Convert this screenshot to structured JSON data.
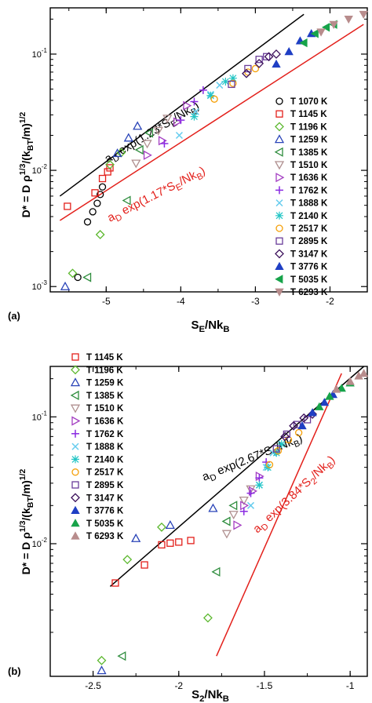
{
  "chart_data": [
    {
      "type": "scatter",
      "panel_label": "(a)",
      "xlabel": "S_E/Nk_B",
      "ylabel": "D* = D ρ^{1/3}/(k_BT/m)^{1/2}",
      "xlim": [
        -5.75,
        -1.5
      ],
      "ylim": [
        0.0009,
        0.25
      ],
      "yscale": "log",
      "xticks": [
        "-5",
        "-4",
        "-3",
        "-2"
      ],
      "yticks": [
        "10^-3",
        "10^-2",
        "10^-1"
      ],
      "legend_position": "right",
      "series": [
        {
          "name": "T 1070 K",
          "color": "#000000",
          "marker": "circle-open",
          "x": [
            -5.38,
            -5.25,
            -5.18,
            -5.12,
            -5.08,
            -5.05
          ],
          "y": [
            0.0012,
            0.0036,
            0.0044,
            0.0052,
            0.0062,
            0.0072
          ]
        },
        {
          "name": "T 1145 K",
          "color": "#e3201b",
          "marker": "square-open",
          "x": [
            -5.52,
            -5.15,
            -5.05,
            -4.98,
            -4.95
          ],
          "y": [
            0.0049,
            0.0064,
            0.0085,
            0.0097,
            0.0105
          ]
        },
        {
          "name": "T 1196 K",
          "color": "#5cb82e",
          "marker": "diamond-open",
          "x": [
            -5.45,
            -5.08,
            -4.95,
            -4.8
          ],
          "y": [
            0.0013,
            0.0028,
            0.0112,
            0.0142
          ]
        },
        {
          "name": "T 1259 K",
          "color": "#2a44b8",
          "marker": "triangle-up-open",
          "x": [
            -5.55,
            -4.85,
            -4.7,
            -4.58
          ],
          "y": [
            0.001,
            0.014,
            0.019,
            0.024
          ]
        },
        {
          "name": "T 1385 K",
          "color": "#2d8c3c",
          "marker": "triangle-left-open",
          "x": [
            -5.25,
            -4.72,
            -4.55,
            -4.42
          ],
          "y": [
            0.0012,
            0.0055,
            0.015,
            0.021
          ]
        },
        {
          "name": "T 1510 K",
          "color": "#b09090",
          "marker": "triangle-down-open",
          "x": [
            -4.6,
            -4.45,
            -4.3,
            -4.18
          ],
          "y": [
            0.0115,
            0.017,
            0.022,
            0.028
          ]
        },
        {
          "name": "T 1636 K",
          "color": "#a43ec2",
          "marker": "triangle-right-open",
          "x": [
            -4.45,
            -4.25,
            -4.05,
            -3.92
          ],
          "y": [
            0.0135,
            0.018,
            0.026,
            0.036
          ]
        },
        {
          "name": "T 1762 K",
          "color": "#8a2be2",
          "marker": "plus",
          "x": [
            -4.22,
            -4.0,
            -3.82,
            -3.7
          ],
          "y": [
            0.017,
            0.027,
            0.039,
            0.049
          ]
        },
        {
          "name": "T 1888 K",
          "color": "#66ccee",
          "marker": "x",
          "x": [
            -4.02,
            -3.8,
            -3.6,
            -3.48
          ],
          "y": [
            0.02,
            0.032,
            0.045,
            0.054
          ]
        },
        {
          "name": "T 2140 K",
          "color": "#22c5c5",
          "marker": "star",
          "x": [
            -3.82,
            -3.6,
            -3.4,
            -3.3
          ],
          "y": [
            0.029,
            0.044,
            0.058,
            0.062
          ]
        },
        {
          "name": "T 2517 K",
          "color": "#f5a00a",
          "marker": "circle-open",
          "x": [
            -3.55,
            -3.3,
            -3.1,
            -3.0
          ],
          "y": [
            0.041,
            0.056,
            0.07,
            0.075
          ]
        },
        {
          "name": "T 2895 K",
          "color": "#6a3d9a",
          "marker": "square-open",
          "x": [
            -3.32,
            -3.1,
            -2.95,
            -2.85
          ],
          "y": [
            0.055,
            0.075,
            0.09,
            0.095
          ]
        },
        {
          "name": "T 3147 K",
          "color": "#3b0f5a",
          "marker": "diamond-open",
          "x": [
            -3.12,
            -2.95,
            -2.82,
            -2.72
          ],
          "y": [
            0.068,
            0.083,
            0.095,
            0.1
          ]
        },
        {
          "name": "T 3776 K",
          "color": "#1f3fc4",
          "marker": "triangle-up-filled",
          "x": [
            -2.72,
            -2.55,
            -2.4,
            -2.25
          ],
          "y": [
            0.082,
            0.105,
            0.13,
            0.15
          ]
        },
        {
          "name": "T 5035 K",
          "color": "#17a34a",
          "marker": "triangle-left-filled",
          "x": [
            -2.35,
            -2.2,
            -2.05,
            -1.95
          ],
          "y": [
            0.125,
            0.15,
            0.17,
            0.18
          ]
        },
        {
          "name": "T 6293 K",
          "color": "#b88c8c",
          "marker": "triangle-down-filled",
          "x": [
            -2.12,
            -1.95,
            -1.75,
            -1.55
          ],
          "y": [
            0.155,
            0.18,
            0.2,
            0.22
          ]
        }
      ],
      "fits": [
        {
          "label": "a_D exp(1.23*S_E/Nk_B)",
          "color": "#000000",
          "x": [
            -5.62,
            -2.35
          ],
          "y": [
            0.006,
            0.22
          ]
        },
        {
          "label": "a_D exp(1.17*S_E/Nk_B)",
          "color": "#e3201b",
          "x": [
            -5.62,
            -1.55
          ],
          "y": [
            0.0037,
            0.18
          ]
        }
      ]
    },
    {
      "type": "scatter",
      "panel_label": "(b)",
      "xlabel": "S_2/Nk_B",
      "ylabel": "D* = D ρ^{1/3}/(k_BT/m)^{1/2}",
      "xlim": [
        -2.75,
        -0.9
      ],
      "ylim": [
        0.0009,
        0.25
      ],
      "yscale": "log",
      "xticks": [
        "-2.5",
        "-2",
        "-1.5",
        "-1"
      ],
      "yticks": [
        "10^-2",
        "10^-1"
      ],
      "legend_position": "top-left",
      "series": [
        {
          "name": "T 1145 K",
          "color": "#e3201b",
          "marker": "square-open",
          "x": [
            -2.37,
            -2.2,
            -2.1,
            -2.05,
            -2.0,
            -1.93
          ],
          "y": [
            0.0049,
            0.0068,
            0.0098,
            0.0101,
            0.0103,
            0.0106
          ]
        },
        {
          "name": "T 1196 K",
          "color": "#5cb82e",
          "marker": "diamond-open",
          "x": [
            -2.45,
            -2.3,
            -2.1,
            -1.83
          ],
          "y": [
            0.0012,
            0.0075,
            0.0135,
            0.0026
          ]
        },
        {
          "name": "T 1259 K",
          "color": "#2a44b8",
          "marker": "triangle-up-open",
          "x": [
            -2.45,
            -2.25,
            -2.05,
            -1.8
          ],
          "y": [
            0.001,
            0.011,
            0.014,
            0.019
          ]
        },
        {
          "name": "T 1385 K",
          "color": "#2d8c3c",
          "marker": "triangle-left-open",
          "x": [
            -2.33,
            -1.78,
            -1.72,
            -1.68
          ],
          "y": [
            0.0013,
            0.006,
            0.015,
            0.02
          ]
        },
        {
          "name": "T 1510 K",
          "color": "#b09090",
          "marker": "triangle-down-open",
          "x": [
            -1.72,
            -1.68,
            -1.62,
            -1.58
          ],
          "y": [
            0.012,
            0.017,
            0.022,
            0.027
          ]
        },
        {
          "name": "T 1636 K",
          "color": "#a43ec2",
          "marker": "triangle-right-open",
          "x": [
            -1.66,
            -1.62,
            -1.57,
            -1.53
          ],
          "y": [
            0.014,
            0.02,
            0.026,
            0.034
          ]
        },
        {
          "name": "T 1762 K",
          "color": "#8a2be2",
          "marker": "plus",
          "x": [
            -1.62,
            -1.58,
            -1.53,
            -1.49
          ],
          "y": [
            0.018,
            0.025,
            0.033,
            0.044
          ]
        },
        {
          "name": "T 1888 K",
          "color": "#66ccee",
          "marker": "x",
          "x": [
            -1.58,
            -1.53,
            -1.49,
            -1.45
          ],
          "y": [
            0.02,
            0.029,
            0.04,
            0.052
          ]
        },
        {
          "name": "T 2140 K",
          "color": "#22c5c5",
          "marker": "star",
          "x": [
            -1.53,
            -1.48,
            -1.43,
            -1.4
          ],
          "y": [
            0.029,
            0.04,
            0.052,
            0.061
          ]
        },
        {
          "name": "T 2517 K",
          "color": "#f5a00a",
          "marker": "circle-open",
          "x": [
            -1.47,
            -1.42,
            -1.36,
            -1.3
          ],
          "y": [
            0.042,
            0.054,
            0.066,
            0.075
          ]
        },
        {
          "name": "T 2895 K",
          "color": "#6a3d9a",
          "marker": "square-open",
          "x": [
            -1.43,
            -1.37,
            -1.31,
            -1.25
          ],
          "y": [
            0.056,
            0.073,
            0.087,
            0.095
          ]
        },
        {
          "name": "T 3147 K",
          "color": "#3b0f5a",
          "marker": "diamond-open",
          "x": [
            -1.38,
            -1.33,
            -1.27,
            -1.22
          ],
          "y": [
            0.07,
            0.085,
            0.098,
            0.105
          ]
        },
        {
          "name": "T 3776 K",
          "color": "#1f3fc4",
          "marker": "triangle-up-filled",
          "x": [
            -1.28,
            -1.22,
            -1.15,
            -1.1
          ],
          "y": [
            0.085,
            0.108,
            0.13,
            0.15
          ]
        },
        {
          "name": "T 5035 K",
          "color": "#17a34a",
          "marker": "triangle-up-filled",
          "x": [
            -1.18,
            -1.12,
            -1.05,
            -1.0
          ],
          "y": [
            0.12,
            0.145,
            0.168,
            0.185
          ]
        },
        {
          "name": "T 6293 K",
          "color": "#b88c8c",
          "marker": "triangle-up-filled",
          "x": [
            -1.08,
            -1.0,
            -0.95,
            -0.92
          ],
          "y": [
            0.165,
            0.19,
            0.21,
            0.22
          ]
        }
      ],
      "fits": [
        {
          "label": "a_D exp(2.67*S_2/Nk_B)",
          "color": "#000000",
          "x": [
            -2.4,
            -0.92
          ],
          "y": [
            0.0046,
            0.25
          ]
        },
        {
          "label": "a_D exp(3.84*S_2/Nk_B)",
          "color": "#e3201b",
          "x": [
            -1.78,
            -1.05
          ],
          "y": [
            0.0013,
            0.22
          ]
        }
      ]
    }
  ]
}
